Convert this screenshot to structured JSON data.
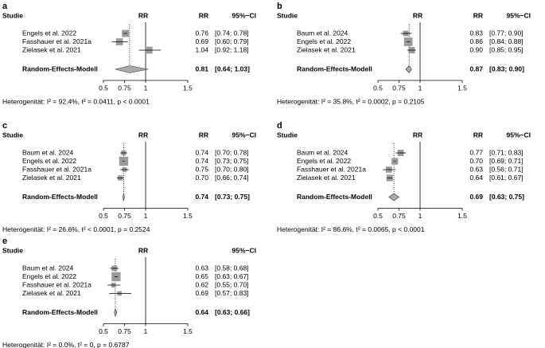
{
  "chart_data": [
    {
      "type": "forest",
      "panel": "a",
      "headers": {
        "study": "Studie",
        "effect": "RR",
        "rr": "RR",
        "ci": "95%−CI"
      },
      "categories": [
        "Engels et al. 2022",
        "Fasshauer et al. 2021a",
        "Zielasek et al. 2021"
      ],
      "values": [
        0.76,
        0.69,
        1.04
      ],
      "value_labels": [
        "0.76",
        "0.69",
        "1.04"
      ],
      "lower": [
        0.74,
        0.6,
        0.92
      ],
      "upper": [
        0.78,
        0.79,
        1.18
      ],
      "ci_labels": [
        "[0.74; 0.78]",
        "[0.60; 0.79]",
        "[0.92; 1.18]"
      ],
      "weights": [
        34,
        33,
        33
      ],
      "summary": {
        "name": "Random-Effects-Modell",
        "value": 0.81,
        "value_label": "0.81",
        "lower": 0.64,
        "upper": 1.03,
        "ci_label": "[0.64; 1.03]"
      },
      "heterogeneity": "Heterogenität: I² = 92.4%, t² = 0.0411, p < 0.0001",
      "xlim": [
        0.5,
        1.5
      ],
      "xticks": [
        0.5,
        0.75,
        1,
        1.5
      ],
      "reference": 1,
      "color": "#9a9a9a",
      "summary_color": "#aaaaaa"
    },
    {
      "type": "forest",
      "panel": "b",
      "headers": {
        "study": "Studie",
        "effect": "RR",
        "rr": "RR",
        "ci": "95%−CI"
      },
      "categories": [
        "Baum et al. 2024",
        "Engels et al. 2022",
        "Zielasek et al. 2021"
      ],
      "values": [
        0.83,
        0.86,
        0.9
      ],
      "value_labels": [
        "0.83",
        "0.86",
        "0.90"
      ],
      "lower": [
        0.77,
        0.84,
        0.85
      ],
      "upper": [
        0.9,
        0.88,
        0.95
      ],
      "ci_labels": [
        "[0.77; 0.90]",
        "[0.84; 0.88]",
        "[0.85; 0.95]"
      ],
      "weights": [
        15,
        60,
        25
      ],
      "summary": {
        "name": "Random-Effects-Modell",
        "value": 0.87,
        "value_label": "0.87",
        "lower": 0.83,
        "upper": 0.9,
        "ci_label": "[0.83; 0.90]"
      },
      "heterogeneity": "Heterogenität: I² = 35.8%, t² = 0.0002, p = 0.2105",
      "xlim": [
        0.5,
        1.5
      ],
      "xticks": [
        0.5,
        0.75,
        1,
        1.5
      ],
      "reference": 1,
      "color": "#9a9a9a",
      "summary_color": "#aaaaaa"
    },
    {
      "type": "forest",
      "panel": "c",
      "headers": {
        "study": "Studie",
        "effect": "RR",
        "rr": "RR",
        "ci": "95%−CI"
      },
      "categories": [
        "Baum et al. 2024",
        "Engels et al. 2022",
        "Fasshauer et al. 2021a",
        "Zielasek et al. 2021"
      ],
      "values": [
        0.74,
        0.74,
        0.75,
        0.7
      ],
      "value_labels": [
        "0.74",
        "0.74",
        "0.75",
        "0.70"
      ],
      "lower": [
        0.7,
        0.73,
        0.7,
        0.66
      ],
      "upper": [
        0.78,
        0.75,
        0.8,
        0.74
      ],
      "ci_labels": [
        "[0.70; 0.78]",
        "[0.73; 0.75]",
        "[0.70; 0.80]",
        "[0.66; 0.74]"
      ],
      "weights": [
        10,
        70,
        8,
        12
      ],
      "summary": {
        "name": "Random-Effects-Modell",
        "value": 0.74,
        "value_label": "0.74",
        "lower": 0.73,
        "upper": 0.75,
        "ci_label": "[0.73; 0.75]"
      },
      "heterogeneity": "Heterogenität: I² = 26.6%, t² < 0.0001, p = 0.2524",
      "xlim": [
        0.5,
        1.5
      ],
      "xticks": [
        0.5,
        0.75,
        1,
        1.5
      ],
      "reference": 1,
      "color": "#9a9a9a",
      "summary_color": "#aaaaaa"
    },
    {
      "type": "forest",
      "panel": "d",
      "headers": {
        "study": "Studie",
        "effect": "RR",
        "rr": "RR",
        "ci": "95%−CI"
      },
      "categories": [
        "Baum et al. 2024",
        "Engels et al. 2022",
        "Fasshauer et al. 2021a",
        "Zielasek et al. 2021"
      ],
      "values": [
        0.77,
        0.7,
        0.63,
        0.64
      ],
      "value_labels": [
        "0.77",
        "0.70",
        "0.63",
        "0.64"
      ],
      "lower": [
        0.71,
        0.69,
        0.56,
        0.61
      ],
      "upper": [
        0.83,
        0.71,
        0.71,
        0.67
      ],
      "ci_labels": [
        "[0.71; 0.83]",
        "[0.69; 0.71]",
        "[0.56; 0.71]",
        "[0.61; 0.67]"
      ],
      "weights": [
        24,
        28,
        22,
        26
      ],
      "summary": {
        "name": "Random-Effects-Modell",
        "value": 0.69,
        "value_label": "0.69",
        "lower": 0.63,
        "upper": 0.75,
        "ci_label": "[0.63; 0.75]"
      },
      "heterogeneity": "Heterogenität: I² = 86.6%, t² = 0.0065, p < 0.0001",
      "xlim": [
        0.5,
        1.5
      ],
      "xticks": [
        0.5,
        0.75,
        1,
        1.5
      ],
      "reference": 1,
      "color": "#9a9a9a",
      "summary_color": "#aaaaaa"
    },
    {
      "type": "forest",
      "panel": "e",
      "headers": {
        "study": "Studie",
        "effect": "RR",
        "ci": "95%−CI"
      },
      "categories": [
        "Baum et al. 2024",
        "Engels et al. 2022",
        "Fasshauer et al. 2021a",
        "Zielasek et al. 2021"
      ],
      "values": [
        0.63,
        0.65,
        0.62,
        0.69
      ],
      "value_labels": [
        "0.63",
        "0.65",
        "0.62",
        "0.69"
      ],
      "lower": [
        0.58,
        0.63,
        0.55,
        0.57
      ],
      "upper": [
        0.68,
        0.67,
        0.7,
        0.83
      ],
      "ci_labels": [
        "[0.58; 0.68]",
        "[0.63; 0.67]",
        "[0.55; 0.70]",
        "[0.57; 0.83]"
      ],
      "weights": [
        15,
        70,
        8,
        7
      ],
      "summary": {
        "name": "Random-Effects-Modell",
        "value": 0.64,
        "value_label": "0.64",
        "lower": 0.63,
        "upper": 0.66,
        "ci_label": "[0.63; 0.66]"
      },
      "heterogeneity": "Heterogenität: I² = 0.0%, t² = 0, p = 0.6787",
      "xlim": [
        0.5,
        1.5
      ],
      "xticks": [
        0.5,
        0.75,
        1,
        1.5
      ],
      "reference": 1,
      "color": "#9a9a9a",
      "summary_color": "#aaaaaa"
    }
  ]
}
